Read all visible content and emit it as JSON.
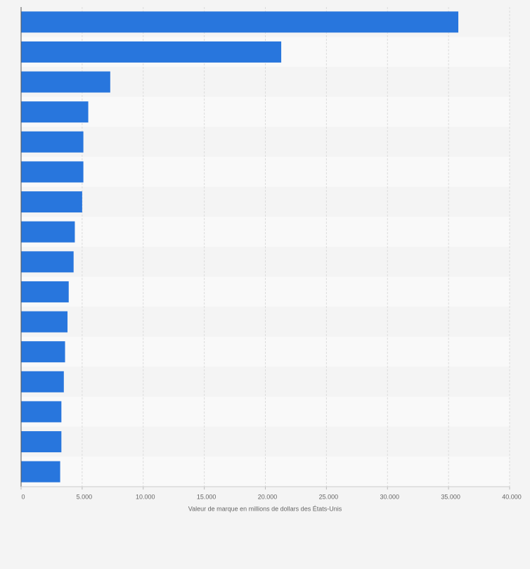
{
  "chart_data": {
    "type": "barh",
    "x_label": "Valeur de marque en millions de dollars des États-Unis",
    "categories": [
      null,
      null,
      null,
      null,
      null,
      null,
      null,
      null,
      null,
      null,
      null,
      null,
      null,
      null,
      null,
      null
    ],
    "values": [
      35800,
      21300,
      7300,
      5500,
      5100,
      5100,
      5000,
      4400,
      4300,
      3900,
      3800,
      3600,
      3500,
      3300,
      3300,
      3200
    ],
    "color": "#2876dd",
    "xlim": [
      0,
      40000
    ],
    "xticks": [
      0,
      {
        "value": 5000,
        "label": "5.000"
      },
      {
        "value": 10000,
        "label": "10.000"
      },
      {
        "value": 15000,
        "label": "15.000"
      },
      {
        "value": 20000,
        "label": "20.000"
      },
      {
        "value": 25000,
        "label": "25.000"
      },
      {
        "value": 30000,
        "label": "30.000"
      },
      {
        "value": 35000,
        "label": "35.000"
      },
      {
        "value": 40000,
        "label": "40.000"
      }
    ],
    "grid": true
  }
}
